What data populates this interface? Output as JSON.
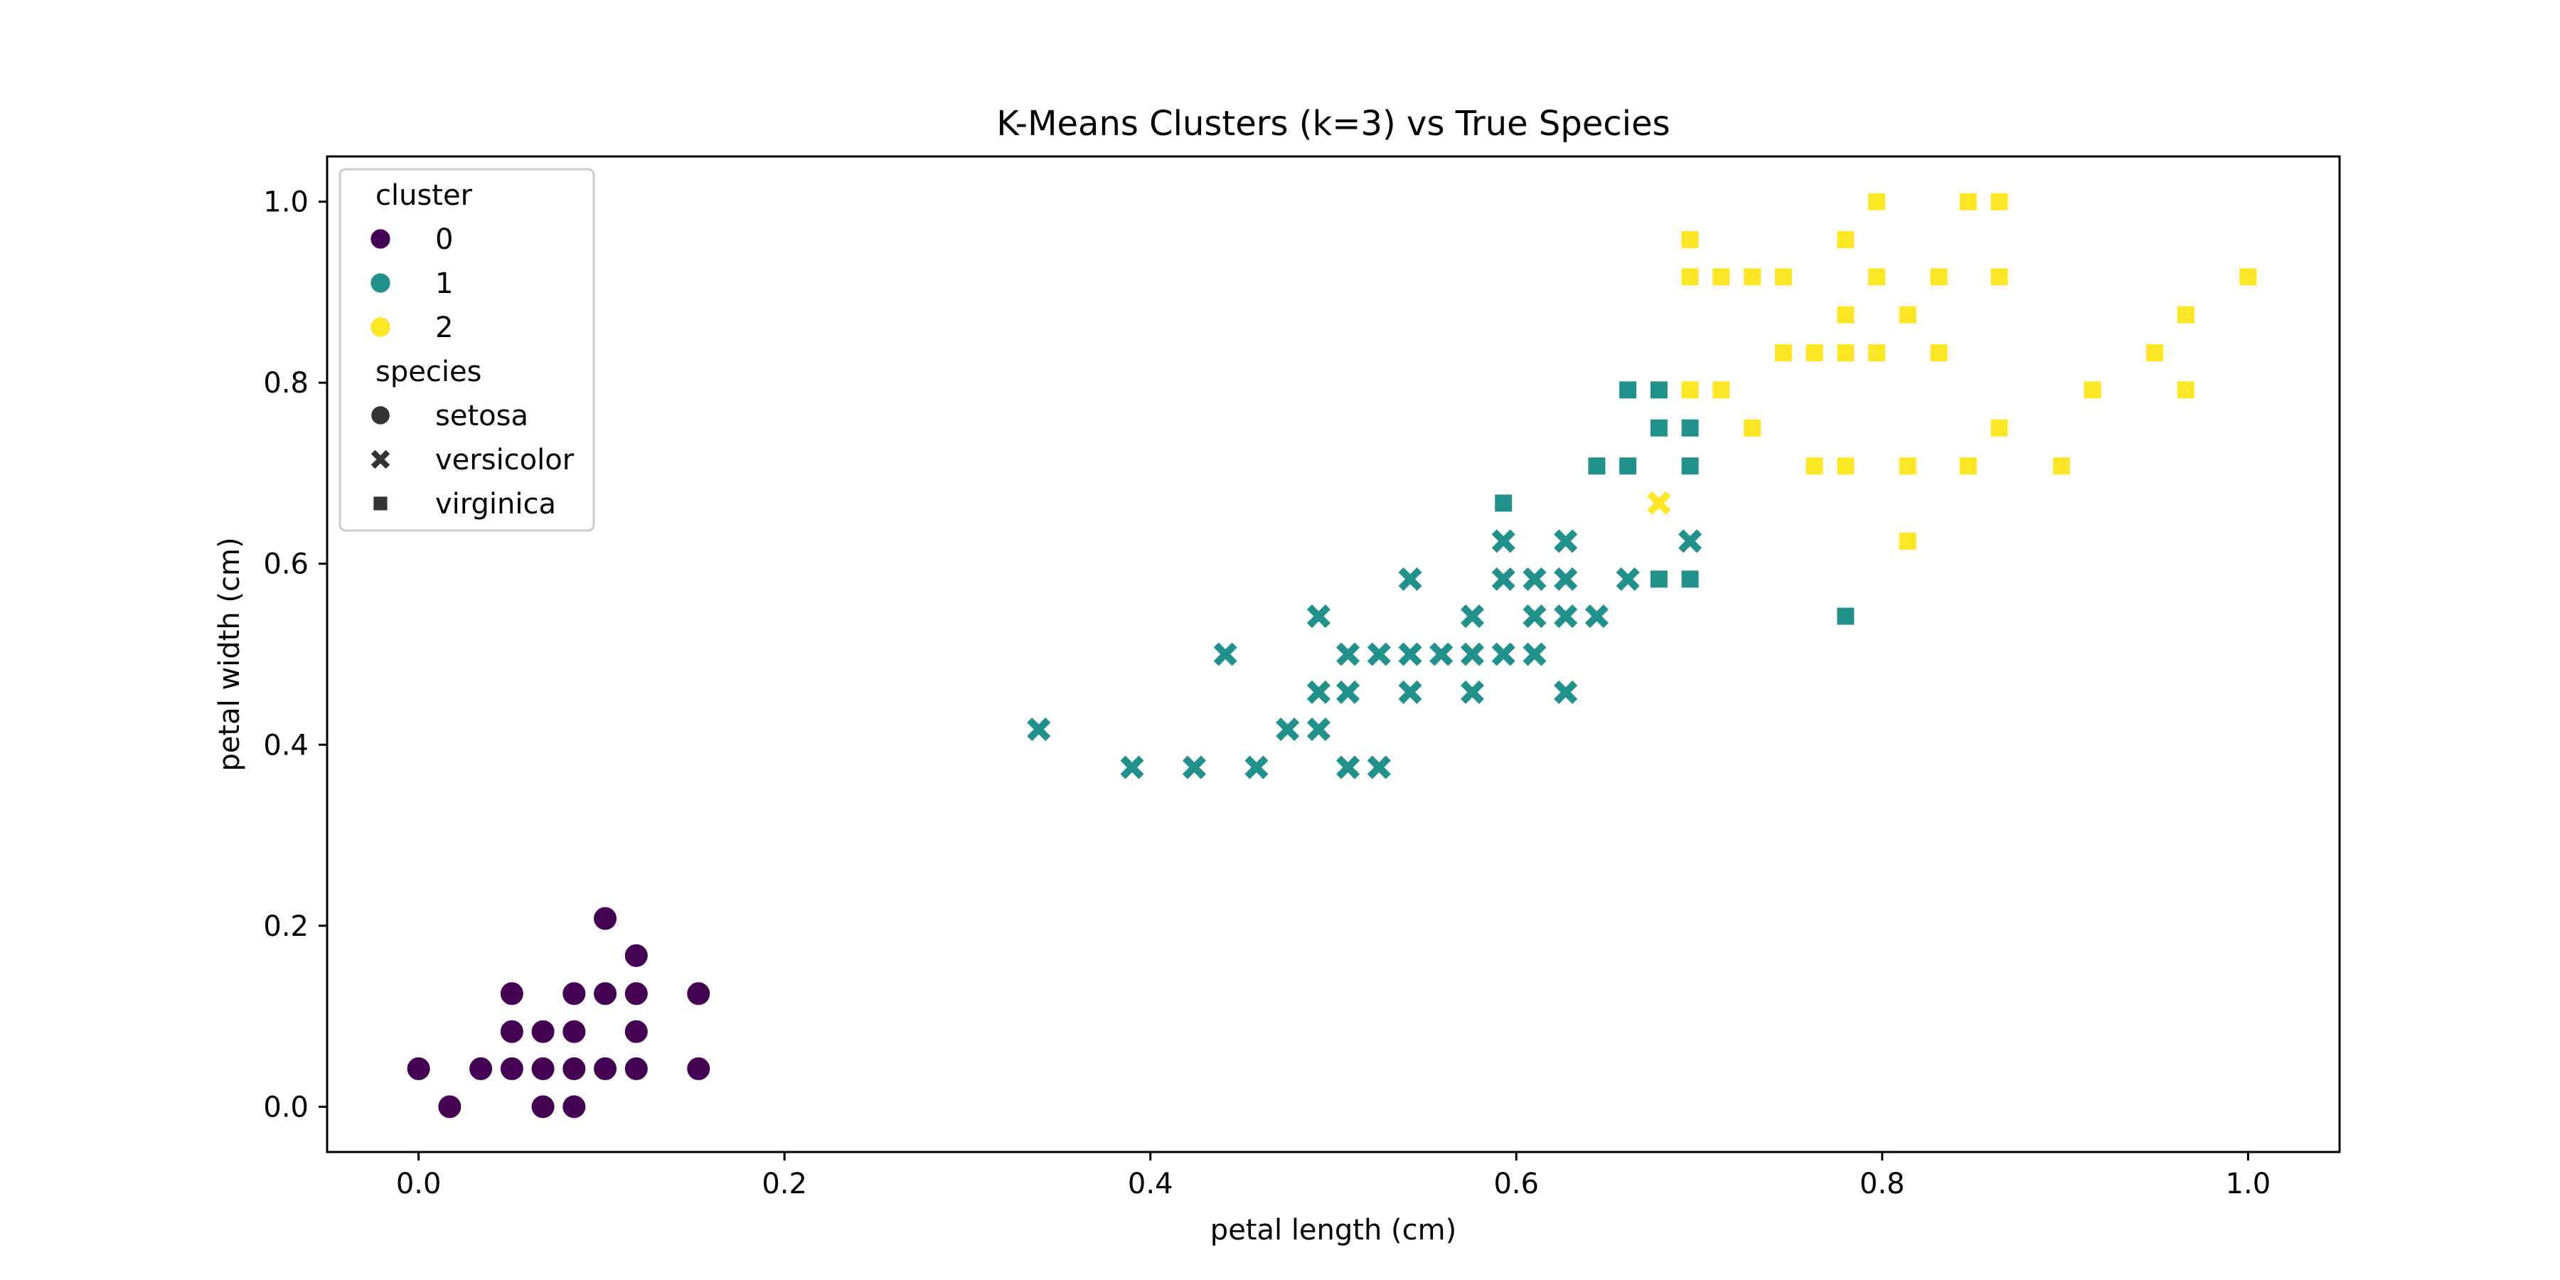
{
  "chart_data": {
    "type": "scatter",
    "title": "K-Means Clusters (k=3) vs True Species",
    "xlabel": "petal length (cm)",
    "ylabel": "petal width (cm)",
    "xlim": [
      -0.05,
      1.05
    ],
    "ylim": [
      -0.05,
      1.05
    ],
    "xticks": [
      "0.0",
      "0.2",
      "0.4",
      "0.6",
      "0.8",
      "1.0"
    ],
    "yticks": [
      "0.0",
      "0.2",
      "0.4",
      "0.6",
      "0.8",
      "1.0"
    ],
    "grid": false,
    "legend_position": "top-left",
    "legend": {
      "hue_title": "cluster",
      "hue_entries": [
        {
          "label": "0",
          "color": "#440154"
        },
        {
          "label": "1",
          "color": "#21918c"
        },
        {
          "label": "2",
          "color": "#fde725"
        }
      ],
      "style_title": "species",
      "style_entries": [
        {
          "label": "setosa",
          "marker": "circle"
        },
        {
          "label": "versicolor",
          "marker": "x"
        },
        {
          "label": "virginica",
          "marker": "square"
        }
      ],
      "marker_color": "#333333"
    },
    "series": [
      {
        "cluster": "0",
        "species": "setosa",
        "marker": "circle",
        "color": "#440154",
        "points": [
          [
            0.0,
            0.042
          ],
          [
            0.017,
            0.0
          ],
          [
            0.034,
            0.042
          ],
          [
            0.051,
            0.042
          ],
          [
            0.051,
            0.083
          ],
          [
            0.051,
            0.125
          ],
          [
            0.068,
            0.0
          ],
          [
            0.068,
            0.042
          ],
          [
            0.068,
            0.083
          ],
          [
            0.085,
            0.0
          ],
          [
            0.085,
            0.042
          ],
          [
            0.085,
            0.083
          ],
          [
            0.085,
            0.125
          ],
          [
            0.102,
            0.042
          ],
          [
            0.102,
            0.125
          ],
          [
            0.102,
            0.208
          ],
          [
            0.119,
            0.042
          ],
          [
            0.119,
            0.083
          ],
          [
            0.119,
            0.125
          ],
          [
            0.119,
            0.167
          ],
          [
            0.153,
            0.042
          ],
          [
            0.153,
            0.125
          ]
        ]
      },
      {
        "cluster": "1",
        "species": "versicolor",
        "marker": "x",
        "color": "#21918c",
        "points": [
          [
            0.339,
            0.417
          ],
          [
            0.39,
            0.375
          ],
          [
            0.424,
            0.375
          ],
          [
            0.441,
            0.5
          ],
          [
            0.458,
            0.375
          ],
          [
            0.475,
            0.417
          ],
          [
            0.492,
            0.417
          ],
          [
            0.492,
            0.458
          ],
          [
            0.492,
            0.542
          ],
          [
            0.508,
            0.375
          ],
          [
            0.508,
            0.458
          ],
          [
            0.508,
            0.5
          ],
          [
            0.525,
            0.375
          ],
          [
            0.525,
            0.5
          ],
          [
            0.542,
            0.458
          ],
          [
            0.542,
            0.5
          ],
          [
            0.542,
            0.583
          ],
          [
            0.559,
            0.5
          ],
          [
            0.576,
            0.458
          ],
          [
            0.576,
            0.5
          ],
          [
            0.576,
            0.542
          ],
          [
            0.593,
            0.5
          ],
          [
            0.593,
            0.583
          ],
          [
            0.593,
            0.625
          ],
          [
            0.61,
            0.5
          ],
          [
            0.61,
            0.542
          ],
          [
            0.61,
            0.583
          ],
          [
            0.627,
            0.458
          ],
          [
            0.627,
            0.542
          ],
          [
            0.627,
            0.583
          ],
          [
            0.627,
            0.625
          ],
          [
            0.644,
            0.542
          ],
          [
            0.661,
            0.583
          ],
          [
            0.695,
            0.625
          ]
        ]
      },
      {
        "cluster": "1",
        "species": "virginica",
        "marker": "square",
        "color": "#21918c",
        "points": [
          [
            0.593,
            0.667
          ],
          [
            0.644,
            0.708
          ],
          [
            0.661,
            0.708
          ],
          [
            0.661,
            0.792
          ],
          [
            0.678,
            0.583
          ],
          [
            0.678,
            0.75
          ],
          [
            0.678,
            0.792
          ],
          [
            0.695,
            0.583
          ],
          [
            0.695,
            0.708
          ],
          [
            0.695,
            0.75
          ],
          [
            0.78,
            0.542
          ]
        ]
      },
      {
        "cluster": "2",
        "species": "versicolor",
        "marker": "x",
        "color": "#fde725",
        "points": [
          [
            0.678,
            0.667
          ]
        ]
      },
      {
        "cluster": "2",
        "species": "virginica",
        "marker": "square",
        "color": "#fde725",
        "points": [
          [
            0.695,
            0.792
          ],
          [
            0.695,
            0.917
          ],
          [
            0.695,
            0.958
          ],
          [
            0.712,
            0.792
          ],
          [
            0.712,
            0.917
          ],
          [
            0.729,
            0.75
          ],
          [
            0.729,
            0.917
          ],
          [
            0.746,
            0.833
          ],
          [
            0.746,
            0.917
          ],
          [
            0.763,
            0.708
          ],
          [
            0.763,
            0.833
          ],
          [
            0.78,
            0.708
          ],
          [
            0.78,
            0.833
          ],
          [
            0.78,
            0.875
          ],
          [
            0.78,
            0.958
          ],
          [
            0.797,
            0.833
          ],
          [
            0.797,
            0.917
          ],
          [
            0.797,
            1.0
          ],
          [
            0.814,
            0.625
          ],
          [
            0.814,
            0.708
          ],
          [
            0.814,
            0.875
          ],
          [
            0.831,
            0.833
          ],
          [
            0.831,
            0.917
          ],
          [
            0.847,
            0.708
          ],
          [
            0.847,
            1.0
          ],
          [
            0.864,
            0.75
          ],
          [
            0.864,
            0.917
          ],
          [
            0.864,
            1.0
          ],
          [
            0.898,
            0.708
          ],
          [
            0.915,
            0.792
          ],
          [
            0.949,
            0.833
          ],
          [
            0.966,
            0.792
          ],
          [
            0.966,
            0.875
          ],
          [
            1.0,
            0.917
          ]
        ]
      }
    ]
  }
}
